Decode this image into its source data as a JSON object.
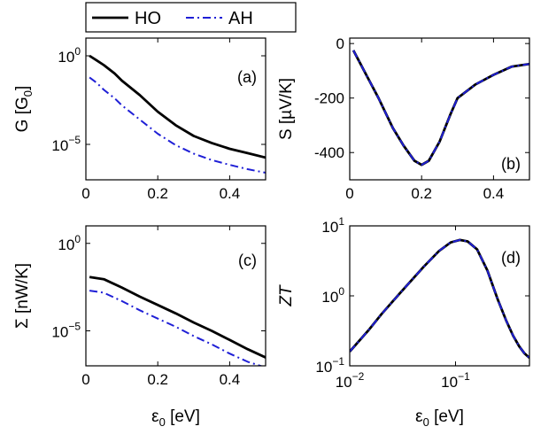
{
  "legend": {
    "entries": [
      {
        "label": "HO",
        "color": "#000000",
        "dash": "solid"
      },
      {
        "label": "AH",
        "color": "#1f1fd6",
        "dash": "dashdot"
      }
    ]
  },
  "chart_data": [
    {
      "type": "line",
      "panel_label": "(a)",
      "ylabel_main": "G [G",
      "ylabel_sub": "0",
      "ylabel_close": "]",
      "xlabel": "",
      "xscale": "linear",
      "yscale": "log",
      "xlim": [
        0,
        0.5
      ],
      "ylim": [
        1e-07,
        10
      ],
      "xticks": [
        {
          "value": 0,
          "label": "0"
        },
        {
          "value": 0.2,
          "label": "0.2"
        },
        {
          "value": 0.4,
          "label": "0.4"
        }
      ],
      "yticks": [
        {
          "value": 1,
          "base": "10",
          "exp": "0"
        },
        {
          "value": 1e-05,
          "base": "10",
          "exp": "−5"
        }
      ],
      "series": [
        {
          "name": "HO",
          "x": [
            0.01,
            0.03,
            0.05,
            0.08,
            0.1,
            0.15,
            0.2,
            0.25,
            0.3,
            0.35,
            0.4,
            0.45,
            0.5
          ],
          "y": [
            1.0,
            0.55,
            0.3,
            0.1,
            0.04,
            0.006,
            0.0007,
            0.00012,
            3e-05,
            1.2e-05,
            5.6e-06,
            3.2e-06,
            1.8e-06
          ]
        },
        {
          "name": "AH",
          "x": [
            0.01,
            0.03,
            0.05,
            0.08,
            0.1,
            0.15,
            0.2,
            0.25,
            0.3,
            0.35,
            0.4,
            0.45,
            0.5
          ],
          "y": [
            0.06,
            0.03,
            0.012,
            0.004,
            0.0016,
            0.00025,
            4e-05,
            9e-06,
            3e-06,
            1.3e-06,
            7e-07,
            4e-07,
            2.5e-07
          ]
        }
      ]
    },
    {
      "type": "line",
      "panel_label": "(b)",
      "ylabel_main": "S [µV/K]",
      "xlabel": "",
      "xscale": "linear",
      "yscale": "linear",
      "xlim": [
        0,
        0.5
      ],
      "ylim": [
        -500,
        20
      ],
      "xticks": [
        {
          "value": 0,
          "label": "0"
        },
        {
          "value": 0.2,
          "label": "0.2"
        },
        {
          "value": 0.4,
          "label": "0.4"
        }
      ],
      "yticks": [
        {
          "value": 0,
          "label": "0"
        },
        {
          "value": -200,
          "label": "-200"
        },
        {
          "value": -400,
          "label": "-400"
        }
      ],
      "series": [
        {
          "name": "HO",
          "x": [
            0.01,
            0.03,
            0.05,
            0.08,
            0.1,
            0.12,
            0.15,
            0.18,
            0.2,
            0.22,
            0.25,
            0.28,
            0.3,
            0.35,
            0.4,
            0.45,
            0.5
          ],
          "y": [
            -25,
            -75,
            -125,
            -200,
            -255,
            -310,
            -375,
            -430,
            -445,
            -430,
            -360,
            -260,
            -200,
            -150,
            -115,
            -85,
            -75
          ]
        },
        {
          "name": "AH",
          "x": [
            0.01,
            0.03,
            0.05,
            0.08,
            0.1,
            0.12,
            0.15,
            0.18,
            0.2,
            0.22,
            0.25,
            0.28,
            0.3,
            0.35,
            0.4,
            0.45,
            0.5
          ],
          "y": [
            -25,
            -75,
            -125,
            -200,
            -255,
            -310,
            -375,
            -430,
            -445,
            -430,
            -360,
            -260,
            -200,
            -150,
            -115,
            -85,
            -75
          ]
        }
      ]
    },
    {
      "type": "line",
      "panel_label": "(c)",
      "ylabel_main": "Σ  [nW/K]",
      "xlabel": "ε",
      "xlabel_sub": "0",
      "xlabel_unit": " [eV]",
      "xscale": "linear",
      "yscale": "log",
      "xlim": [
        0,
        0.5
      ],
      "ylim": [
        1e-07,
        10
      ],
      "xticks": [
        {
          "value": 0,
          "label": "0"
        },
        {
          "value": 0.2,
          "label": "0.2"
        },
        {
          "value": 0.4,
          "label": "0.4"
        }
      ],
      "yticks": [
        {
          "value": 1,
          "base": "10",
          "exp": "0"
        },
        {
          "value": 1e-05,
          "base": "10",
          "exp": "−5"
        }
      ],
      "series": [
        {
          "name": "HO",
          "x": [
            0.01,
            0.05,
            0.1,
            0.15,
            0.2,
            0.25,
            0.3,
            0.35,
            0.4,
            0.45,
            0.5
          ],
          "y": [
            0.012,
            0.009,
            0.003,
            0.0009,
            0.0003,
            0.0001,
            3e-05,
            1e-05,
            3e-06,
            9e-07,
            3e-07
          ]
        },
        {
          "name": "AH",
          "x": [
            0.01,
            0.05,
            0.1,
            0.15,
            0.2,
            0.25,
            0.3,
            0.35,
            0.4,
            0.45,
            0.5
          ],
          "y": [
            0.002,
            0.0015,
            0.0005,
            0.00015,
            5e-05,
            1.7e-05,
            5e-06,
            1.7e-06,
            5e-07,
            1.7e-07,
            8e-08
          ]
        }
      ]
    },
    {
      "type": "line",
      "panel_label": "(d)",
      "ylabel_main": "ZT",
      "xlabel": "ε",
      "xlabel_sub": "0",
      "xlabel_unit": " [eV]",
      "xscale": "log",
      "yscale": "log",
      "xlim": [
        0.01,
        0.5
      ],
      "ylim": [
        0.1,
        10
      ],
      "xticks": [
        {
          "value": 0.01,
          "base": "10",
          "exp": "−2"
        },
        {
          "value": 0.1,
          "base": "10",
          "exp": "−1"
        }
      ],
      "yticks": [
        {
          "value": 10,
          "base": "10",
          "exp": "1"
        },
        {
          "value": 1,
          "base": "10",
          "exp": "0"
        },
        {
          "value": 0.1,
          "base": "10",
          "exp": "−1"
        }
      ],
      "series": [
        {
          "name": "HO",
          "x": [
            0.01,
            0.015,
            0.02,
            0.03,
            0.05,
            0.07,
            0.09,
            0.11,
            0.13,
            0.16,
            0.2,
            0.25,
            0.3,
            0.35,
            0.4,
            0.45,
            0.5
          ],
          "y": [
            0.16,
            0.32,
            0.55,
            1.1,
            2.6,
            4.4,
            5.8,
            6.3,
            6.0,
            4.6,
            2.3,
            0.9,
            0.45,
            0.27,
            0.19,
            0.15,
            0.13
          ]
        },
        {
          "name": "AH",
          "x": [
            0.01,
            0.015,
            0.02,
            0.03,
            0.05,
            0.07,
            0.09,
            0.11,
            0.13,
            0.16,
            0.2,
            0.25,
            0.3,
            0.35,
            0.4,
            0.45,
            0.5
          ],
          "y": [
            0.16,
            0.32,
            0.55,
            1.1,
            2.6,
            4.4,
            5.8,
            6.3,
            6.0,
            4.6,
            2.3,
            0.9,
            0.45,
            0.27,
            0.19,
            0.15,
            0.13
          ]
        }
      ]
    }
  ]
}
